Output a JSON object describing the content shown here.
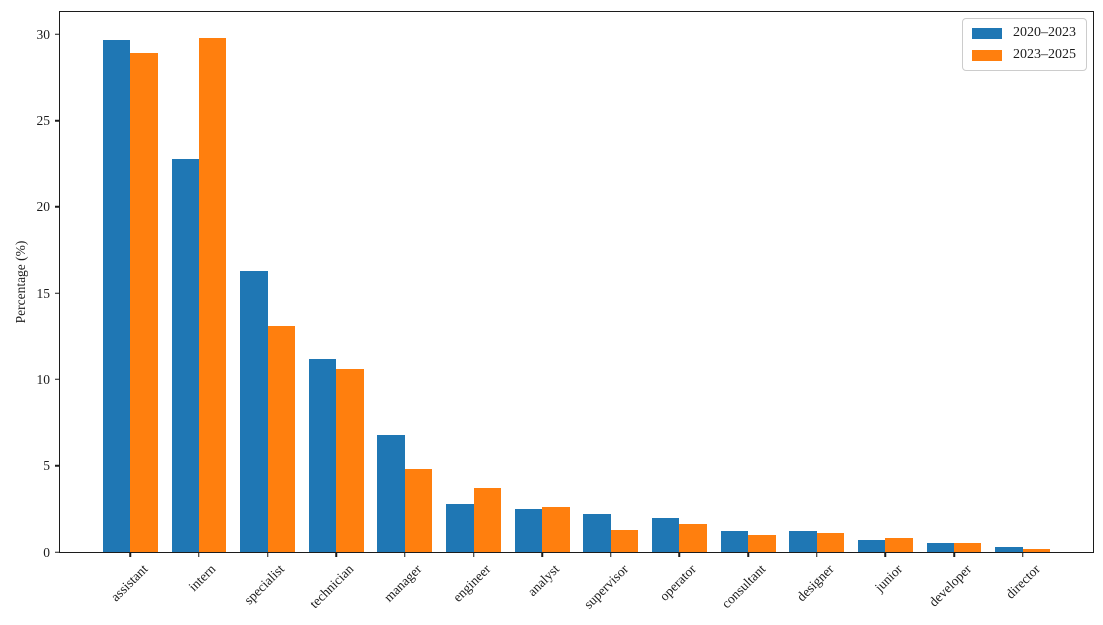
{
  "chart_data": {
    "type": "bar",
    "title": "",
    "xlabel": "",
    "ylabel": "Percentage (%)",
    "categories": [
      "assistant",
      "intern",
      "specialist",
      "technician",
      "manager",
      "engineer",
      "analyst",
      "supervisor",
      "operator",
      "consultant",
      "designer",
      "junior",
      "developer",
      "director"
    ],
    "series": [
      {
        "name": "2020–2023",
        "color": "#1f77b4",
        "values": [
          29.7,
          22.8,
          16.3,
          11.2,
          6.8,
          2.8,
          2.5,
          2.2,
          2.0,
          1.2,
          1.2,
          0.7,
          0.5,
          0.3
        ]
      },
      {
        "name": "2023–2025",
        "color": "#ff7f0e",
        "values": [
          28.9,
          29.8,
          13.1,
          10.6,
          4.8,
          3.7,
          2.6,
          1.3,
          1.6,
          1.0,
          1.1,
          0.8,
          0.5,
          0.15
        ]
      }
    ],
    "yticks": [
      0,
      5,
      10,
      15,
      20,
      25,
      30
    ],
    "ylim": [
      0,
      31.3
    ],
    "grid": false,
    "legend_position": "upper right",
    "xtick_rotation": 45,
    "axis_color": "#1c1c1c"
  }
}
